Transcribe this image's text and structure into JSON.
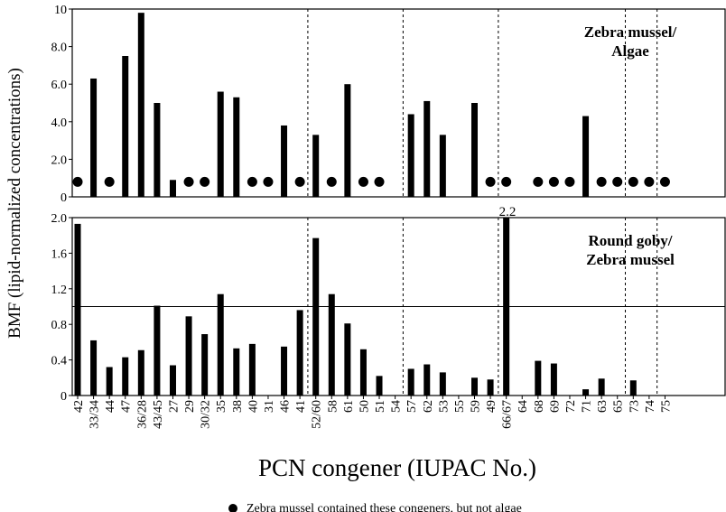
{
  "chart_data": [
    {
      "type": "bar",
      "panel": "top",
      "title": "Zebra mussel/\nAlgae",
      "ylim": [
        0,
        10
      ],
      "yticks": [
        "0",
        "2.0",
        "4.0",
        "6.0",
        "8.0",
        "10"
      ],
      "categories": [
        "42",
        "33/34",
        "44",
        "47",
        "36/28",
        "43/45",
        "27",
        "29",
        "30/32",
        "35",
        "38",
        "40",
        "31",
        "46",
        "41",
        "52/60",
        "58",
        "61",
        "50",
        "51",
        "54",
        "57",
        "62",
        "53",
        "55",
        "59",
        "49",
        "66/67",
        "64",
        "68",
        "69",
        "72",
        "71",
        "63",
        "65",
        "73",
        "74",
        "75"
      ],
      "values": [
        null,
        6.3,
        null,
        7.5,
        9.8,
        5.0,
        0.9,
        null,
        null,
        5.6,
        5.3,
        null,
        null,
        3.8,
        null,
        3.3,
        null,
        6.0,
        null,
        null,
        null,
        4.4,
        5.1,
        3.3,
        null,
        5.0,
        null,
        null,
        null,
        null,
        null,
        null,
        4.3,
        null,
        null,
        null,
        null,
        null
      ],
      "dots": [
        "42",
        "44",
        "29",
        "30/32",
        "40",
        "31",
        "41",
        "58",
        "50",
        "51",
        "49",
        "66/67",
        "68",
        "69",
        "72",
        "63",
        "65",
        "73",
        "74",
        "75"
      ],
      "separators_after": [
        "41",
        "54",
        "49",
        "65",
        "74"
      ],
      "grid": false
    },
    {
      "type": "bar",
      "panel": "bottom",
      "title": "Round goby/\nZebra mussel",
      "ylim": [
        0,
        2.0
      ],
      "yticks": [
        "0",
        "0.4",
        "0.8",
        "1.2",
        "1.6",
        "2.0"
      ],
      "reference_line": 1.0,
      "categories": [
        "42",
        "33/34",
        "44",
        "47",
        "36/28",
        "43/45",
        "27",
        "29",
        "30/32",
        "35",
        "38",
        "40",
        "31",
        "46",
        "41",
        "52/60",
        "58",
        "61",
        "50",
        "51",
        "54",
        "57",
        "62",
        "53",
        "55",
        "59",
        "49",
        "66/67",
        "64",
        "68",
        "69",
        "72",
        "71",
        "63",
        "65",
        "73",
        "74",
        "75"
      ],
      "values": [
        1.93,
        0.62,
        0.32,
        0.43,
        0.51,
        1.01,
        0.34,
        0.89,
        0.69,
        1.14,
        0.53,
        0.58,
        null,
        0.55,
        0.96,
        1.77,
        1.14,
        0.81,
        0.52,
        0.22,
        null,
        0.3,
        0.35,
        0.26,
        null,
        0.2,
        0.18,
        2.2,
        null,
        0.39,
        0.36,
        null,
        0.07,
        0.19,
        null,
        0.17,
        null,
        null
      ],
      "annotation": {
        "category": "66/67",
        "text": "2.2"
      },
      "separators_after": [
        "41",
        "54",
        "49",
        "65",
        "74"
      ],
      "grid": false
    }
  ],
  "ylabel": "BMF (lipid-normalized concentrations)",
  "xlabel": "PCN congener (IUPAC No.)",
  "legend": {
    "symbol": "circle",
    "text": "Zebra mussel contained these congeners, but not algae"
  }
}
